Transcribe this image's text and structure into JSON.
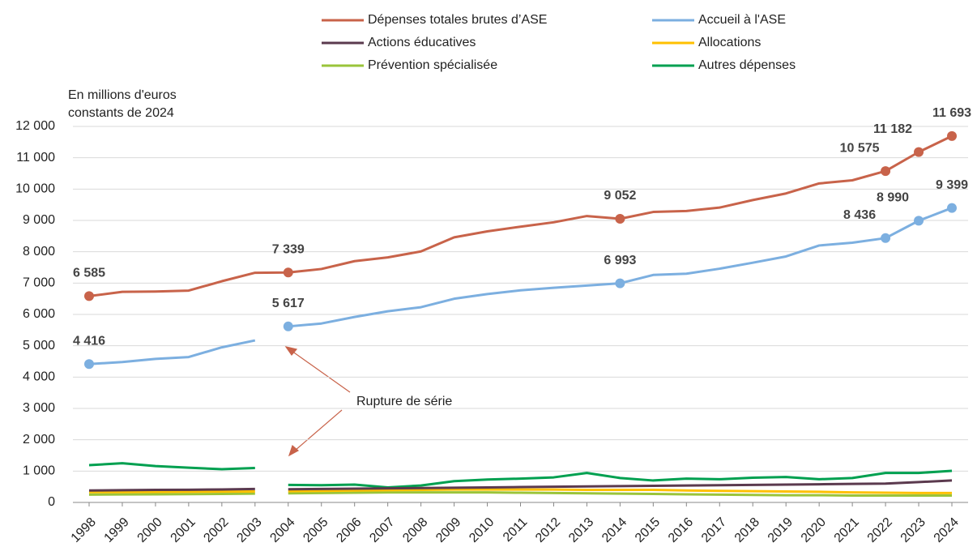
{
  "chart_data": {
    "type": "line",
    "y_axis_label": [
      "En millions d'euros",
      "constants de 2024"
    ],
    "categories": [
      "1998",
      "1999",
      "2000",
      "2001",
      "2002",
      "2003",
      "2004",
      "2005",
      "2006",
      "2007",
      "2008",
      "2009",
      "2010",
      "2011",
      "2012",
      "2013",
      "2014",
      "2015",
      "2016",
      "2017",
      "2018",
      "2019",
      "2020",
      "2021",
      "2022",
      "2023",
      "2024"
    ],
    "break_before": "2004",
    "ylim": [
      0,
      12000
    ],
    "yticks": [
      0,
      {
        "value": 1000,
        "label": "1 000"
      },
      {
        "value": 2000,
        "label": "2 000"
      },
      {
        "value": 3000,
        "label": "3 000"
      },
      {
        "value": 4000,
        "label": "4 000"
      },
      {
        "value": 5000,
        "label": "5 000"
      },
      {
        "value": 6000,
        "label": "6 000"
      },
      {
        "value": 7000,
        "label": "7 000"
      },
      {
        "value": 8000,
        "label": "8 000"
      },
      {
        "value": 9000,
        "label": "9 000"
      },
      {
        "value": 10000,
        "label": "10 000"
      },
      {
        "value": 11000,
        "label": "11 000"
      },
      {
        "value": 12000,
        "label": "12 000"
      }
    ],
    "grid": true,
    "legend": "top",
    "series": [
      {
        "name": "Dépenses totales brutes d’ASE",
        "color": "#c8634a",
        "broken": false,
        "values": [
          6585,
          6720,
          6730,
          6760,
          7060,
          7330,
          7339,
          7450,
          7700,
          7820,
          8010,
          8460,
          8650,
          8800,
          8940,
          9140,
          9052,
          9270,
          9300,
          9410,
          9650,
          9860,
          10180,
          10280,
          10575,
          11182,
          11693
        ],
        "value_labels": [
          "6 585",
          null,
          null,
          null,
          null,
          null,
          "7 339",
          null,
          null,
          null,
          null,
          null,
          null,
          null,
          null,
          null,
          "9 052",
          null,
          null,
          null,
          null,
          null,
          null,
          null,
          "10 575",
          "11 182",
          "11 693"
        ]
      },
      {
        "name": "Accueil à l'ASE",
        "color": "#7cafe0",
        "broken": true,
        "values": [
          4416,
          4480,
          4580,
          4640,
          4950,
          5170,
          5617,
          5710,
          5920,
          6100,
          6230,
          6500,
          6650,
          6770,
          6850,
          6920,
          6993,
          7260,
          7300,
          7460,
          7650,
          7850,
          8200,
          8290,
          8436,
          8990,
          9399
        ],
        "value_labels": [
          "4 416",
          null,
          null,
          null,
          null,
          null,
          "5 617",
          null,
          null,
          null,
          null,
          null,
          null,
          null,
          null,
          null,
          "6 993",
          null,
          null,
          null,
          null,
          null,
          null,
          null,
          "8 436",
          "8 990",
          "9 399"
        ]
      },
      {
        "name": "Actions éducatives",
        "color": "#5b3a4e",
        "broken": true,
        "values": [
          380,
          390,
          400,
          405,
          415,
          430,
          420,
          430,
          440,
          450,
          460,
          470,
          480,
          490,
          500,
          510,
          520,
          530,
          540,
          550,
          560,
          570,
          580,
          590,
          600,
          650,
          700
        ]
      },
      {
        "name": "Allocations",
        "color": "#ffc000",
        "broken": true,
        "values": [
          330,
          330,
          335,
          340,
          345,
          350,
          360,
          370,
          380,
          390,
          400,
          410,
          410,
          410,
          410,
          400,
          400,
          400,
          380,
          370,
          360,
          350,
          340,
          320,
          310,
          300,
          300
        ]
      },
      {
        "name": "Prévention spécialisée",
        "color": "#9ac43a",
        "broken": true,
        "values": [
          250,
          255,
          260,
          265,
          270,
          280,
          290,
          300,
          310,
          320,
          320,
          320,
          320,
          310,
          300,
          290,
          280,
          270,
          260,
          250,
          240,
          230,
          230,
          220,
          220,
          220,
          220
        ]
      },
      {
        "name": "Autres dépenses",
        "color": "#00a050",
        "broken": true,
        "values": [
          1190,
          1250,
          1160,
          1110,
          1060,
          1100,
          560,
          550,
          570,
          480,
          540,
          680,
          730,
          760,
          800,
          940,
          780,
          700,
          760,
          740,
          790,
          810,
          740,
          780,
          940,
          940,
          1010
        ]
      }
    ],
    "annotations": [
      "Rupture de série"
    ]
  }
}
